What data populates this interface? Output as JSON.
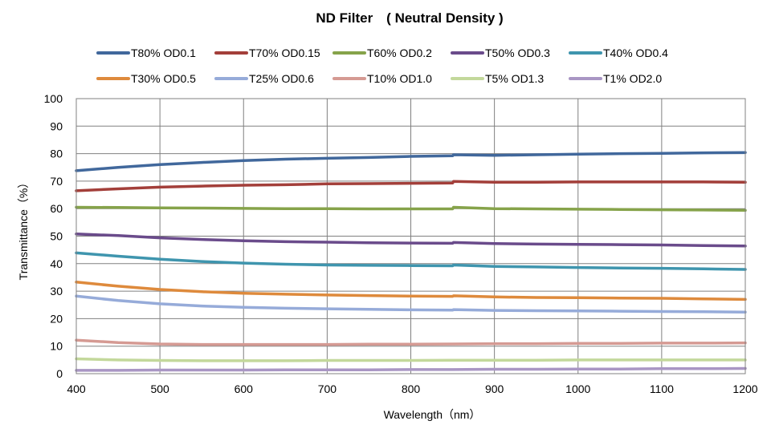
{
  "chart_data": {
    "type": "line",
    "title": "ND Filter　( Neutral Density )",
    "xlabel": "Wavelength（nm）",
    "ylabel": "Transmittance（%）",
    "xlim": [
      400,
      1200
    ],
    "ylim": [
      0,
      100
    ],
    "xticks": [
      400,
      500,
      600,
      700,
      800,
      900,
      1000,
      1100,
      1200
    ],
    "yticks": [
      0,
      10,
      20,
      30,
      40,
      50,
      60,
      70,
      80,
      90,
      100
    ],
    "grid": true,
    "legend_position": "top",
    "series": [
      {
        "name": "T80% OD0.1",
        "color": "#41689C",
        "x": [
          400,
          450,
          500,
          550,
          600,
          650,
          700,
          750,
          800,
          850,
          851,
          900,
          950,
          1000,
          1050,
          1100,
          1150,
          1200
        ],
        "y": [
          73.8,
          75,
          76,
          76.8,
          77.5,
          78,
          78.3,
          78.6,
          79,
          79.2,
          79.6,
          79.4,
          79.6,
          79.8,
          80,
          80.1,
          80.3,
          80.4
        ]
      },
      {
        "name": "T70% OD0.15",
        "color": "#A33F3A",
        "x": [
          400,
          450,
          500,
          550,
          600,
          650,
          700,
          750,
          800,
          850,
          851,
          900,
          950,
          1000,
          1050,
          1100,
          1150,
          1200
        ],
        "y": [
          66.5,
          67.2,
          67.8,
          68.2,
          68.5,
          68.7,
          69,
          69.1,
          69.2,
          69.3,
          69.9,
          69.6,
          69.6,
          69.7,
          69.7,
          69.7,
          69.7,
          69.6
        ]
      },
      {
        "name": "T60% OD0.2",
        "color": "#86A34A",
        "x": [
          400,
          450,
          500,
          550,
          600,
          650,
          700,
          750,
          800,
          850,
          851,
          900,
          950,
          1000,
          1050,
          1100,
          1150,
          1200
        ],
        "y": [
          60.5,
          60.4,
          60.3,
          60.2,
          60.1,
          60,
          60,
          59.9,
          59.9,
          59.9,
          60.5,
          60,
          59.9,
          59.8,
          59.7,
          59.6,
          59.5,
          59.4
        ]
      },
      {
        "name": "T50% OD0.3",
        "color": "#6A4B8B",
        "x": [
          400,
          450,
          500,
          550,
          600,
          650,
          700,
          750,
          800,
          850,
          851,
          900,
          950,
          1000,
          1050,
          1100,
          1150,
          1200
        ],
        "y": [
          50.8,
          50.2,
          49.4,
          48.8,
          48.3,
          48,
          47.8,
          47.6,
          47.5,
          47.4,
          47.7,
          47.3,
          47.1,
          47,
          46.9,
          46.8,
          46.6,
          46.4
        ]
      },
      {
        "name": "T40% OD0.4",
        "color": "#3F95AE",
        "x": [
          400,
          450,
          500,
          550,
          600,
          650,
          700,
          750,
          800,
          850,
          851,
          900,
          950,
          1000,
          1050,
          1100,
          1150,
          1200
        ],
        "y": [
          43.9,
          42.7,
          41.6,
          40.8,
          40.2,
          39.8,
          39.5,
          39.4,
          39.3,
          39.2,
          39.5,
          39,
          38.8,
          38.6,
          38.4,
          38.3,
          38.1,
          37.9
        ]
      },
      {
        "name": "T30% OD0.5",
        "color": "#DE8A3C",
        "x": [
          400,
          450,
          500,
          550,
          600,
          650,
          700,
          750,
          800,
          850,
          851,
          900,
          950,
          1000,
          1050,
          1100,
          1150,
          1200
        ],
        "y": [
          33.3,
          31.8,
          30.6,
          29.8,
          29.2,
          28.9,
          28.6,
          28.4,
          28.2,
          28.1,
          28.3,
          27.9,
          27.7,
          27.6,
          27.5,
          27.4,
          27.2,
          27
        ]
      },
      {
        "name": "T25% OD0.6",
        "color": "#96ABD9",
        "x": [
          400,
          450,
          500,
          550,
          600,
          650,
          700,
          750,
          800,
          850,
          851,
          900,
          950,
          1000,
          1050,
          1100,
          1150,
          1200
        ],
        "y": [
          28.2,
          26.6,
          25.4,
          24.6,
          24.1,
          23.8,
          23.6,
          23.4,
          23.2,
          23.1,
          23.3,
          23,
          22.9,
          22.8,
          22.7,
          22.6,
          22.5,
          22.4
        ]
      },
      {
        "name": "T10% OD1.0",
        "color": "#D59A93",
        "x": [
          400,
          450,
          500,
          550,
          600,
          650,
          700,
          750,
          800,
          850,
          900,
          950,
          1000,
          1050,
          1100,
          1150,
          1200
        ],
        "y": [
          12.2,
          11.3,
          10.8,
          10.6,
          10.6,
          10.6,
          10.6,
          10.7,
          10.7,
          10.8,
          10.9,
          10.9,
          11,
          11,
          11.1,
          11.1,
          11.2
        ]
      },
      {
        "name": "T5% OD1.3",
        "color": "#C3D89B",
        "x": [
          400,
          450,
          500,
          550,
          600,
          650,
          700,
          750,
          800,
          850,
          900,
          950,
          1000,
          1050,
          1100,
          1150,
          1200
        ],
        "y": [
          5.4,
          5,
          4.8,
          4.7,
          4.7,
          4.7,
          4.8,
          4.8,
          4.8,
          4.9,
          4.9,
          4.9,
          5,
          5,
          5,
          5,
          5
        ]
      },
      {
        "name": "T1% OD2.0",
        "color": "#A996C4",
        "x": [
          400,
          450,
          500,
          550,
          600,
          650,
          700,
          750,
          800,
          850,
          900,
          950,
          1000,
          1050,
          1100,
          1150,
          1200
        ],
        "y": [
          1.2,
          1.2,
          1.3,
          1.3,
          1.3,
          1.4,
          1.4,
          1.4,
          1.5,
          1.5,
          1.6,
          1.6,
          1.7,
          1.7,
          1.8,
          1.8,
          1.9
        ]
      }
    ]
  }
}
